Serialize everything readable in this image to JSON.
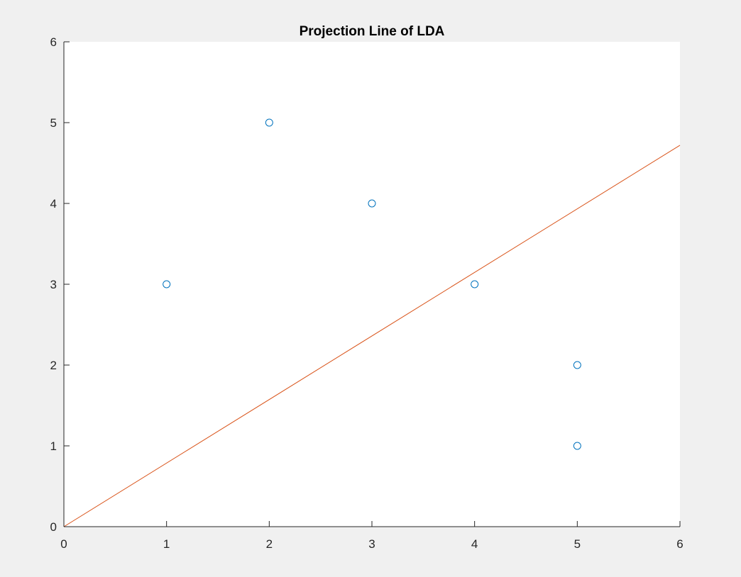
{
  "chart_data": {
    "type": "scatter",
    "title": "Projection Line of LDA",
    "xlabel": "",
    "ylabel": "",
    "xlim": [
      0,
      6
    ],
    "ylim": [
      0,
      6
    ],
    "xticks": [
      "0",
      "1",
      "2",
      "3",
      "4",
      "5",
      "6"
    ],
    "yticks": [
      "0",
      "1",
      "2",
      "3",
      "4",
      "5",
      "6"
    ],
    "grid": false,
    "series": [
      {
        "type": "scatter",
        "marker": "circle-open",
        "color": "#0072BD",
        "points": [
          [
            1,
            3
          ],
          [
            2,
            5
          ],
          [
            3,
            4
          ],
          [
            4,
            3
          ],
          [
            5,
            2
          ],
          [
            5,
            1
          ]
        ]
      },
      {
        "type": "line",
        "color": "#D95319",
        "points": [
          [
            0,
            0
          ],
          [
            6,
            4.72
          ]
        ]
      }
    ]
  },
  "colors": {
    "figure_background": "#f0f0f0",
    "axes_background": "#ffffff",
    "axis_line": "#262626"
  }
}
